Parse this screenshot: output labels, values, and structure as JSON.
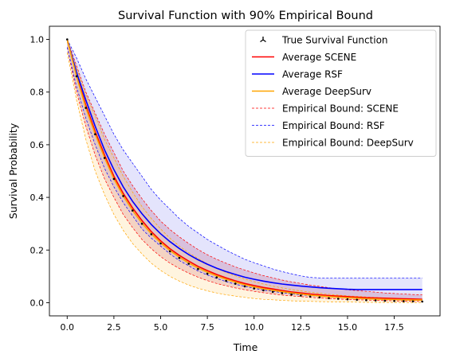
{
  "chart_data": {
    "type": "line",
    "title": "Survival Function with 90% Empirical Bound",
    "xlabel": "Time",
    "ylabel": "Survival Probability",
    "xlim": [
      -0.95,
      19.95
    ],
    "ylim": [
      -0.05,
      1.05
    ],
    "x_ticks": [
      0.0,
      2.5,
      5.0,
      7.5,
      10.0,
      12.5,
      15.0,
      17.5
    ],
    "x_tick_labels": [
      "0.0",
      "2.5",
      "5.0",
      "7.5",
      "10.0",
      "12.5",
      "15.0",
      "17.5"
    ],
    "y_ticks": [
      0.0,
      0.2,
      0.4,
      0.6,
      0.8,
      1.0
    ],
    "y_tick_labels": [
      "0.0",
      "0.2",
      "0.4",
      "0.6",
      "0.8",
      "1.0"
    ],
    "grid": false,
    "legend_position": "top-right",
    "x": [
      0.0,
      0.5,
      1.0,
      1.5,
      2.0,
      2.5,
      3.0,
      3.5,
      4.0,
      4.5,
      5.0,
      5.5,
      6.0,
      6.5,
      7.0,
      7.5,
      8.0,
      8.5,
      9.0,
      9.5,
      10.0,
      10.5,
      11.0,
      11.5,
      12.0,
      12.5,
      13.0,
      13.5,
      14.0,
      14.5,
      15.0,
      15.5,
      16.0,
      16.5,
      17.0,
      17.5,
      18.0,
      18.5,
      19.0
    ],
    "series": [
      {
        "name": "True Survival Function",
        "style": "markers",
        "color": "#000000",
        "values": [
          1.0,
          0.86,
          0.74,
          0.64,
          0.55,
          0.47,
          0.405,
          0.35,
          0.3,
          0.26,
          0.225,
          0.195,
          0.17,
          0.148,
          0.128,
          0.11,
          0.096,
          0.083,
          0.072,
          0.062,
          0.054,
          0.047,
          0.041,
          0.036,
          0.031,
          0.027,
          0.023,
          0.02,
          0.017,
          0.015,
          0.013,
          0.011,
          0.0095,
          0.0085,
          0.0075,
          0.0065,
          0.0055,
          0.005,
          0.0045
        ]
      },
      {
        "name": "Average SCENE",
        "style": "line",
        "color": "#ff0000",
        "values": [
          1.0,
          0.865,
          0.75,
          0.65,
          0.56,
          0.48,
          0.415,
          0.36,
          0.312,
          0.27,
          0.235,
          0.205,
          0.18,
          0.158,
          0.138,
          0.122,
          0.107,
          0.094,
          0.083,
          0.073,
          0.065,
          0.058,
          0.052,
          0.046,
          0.041,
          0.037,
          0.033,
          0.03,
          0.027,
          0.025,
          0.023,
          0.021,
          0.019,
          0.018,
          0.017,
          0.016,
          0.015,
          0.014,
          0.013
        ]
      },
      {
        "name": "Average RSF",
        "style": "line",
        "color": "#0000ff",
        "values": [
          1.0,
          0.875,
          0.77,
          0.67,
          0.58,
          0.505,
          0.44,
          0.385,
          0.338,
          0.297,
          0.262,
          0.232,
          0.206,
          0.183,
          0.163,
          0.146,
          0.131,
          0.118,
          0.107,
          0.097,
          0.089,
          0.082,
          0.076,
          0.071,
          0.067,
          0.063,
          0.06,
          0.057,
          0.055,
          0.053,
          0.051,
          0.05,
          0.05,
          0.05,
          0.05,
          0.05,
          0.05,
          0.05,
          0.05
        ]
      },
      {
        "name": "Average DeepSurv",
        "style": "line",
        "color": "#ffa500",
        "values": [
          1.0,
          0.86,
          0.74,
          0.64,
          0.55,
          0.47,
          0.405,
          0.35,
          0.302,
          0.262,
          0.228,
          0.198,
          0.173,
          0.151,
          0.132,
          0.116,
          0.102,
          0.089,
          0.078,
          0.068,
          0.06,
          0.053,
          0.047,
          0.042,
          0.037,
          0.033,
          0.029,
          0.026,
          0.023,
          0.021,
          0.019,
          0.017,
          0.015,
          0.014,
          0.013,
          0.012,
          0.011,
          0.01,
          0.01
        ]
      }
    ],
    "bounds": [
      {
        "name": "Empirical Bound: SCENE",
        "color": "#ff0000",
        "fill": "#c6506a",
        "fill_opacity": 0.25,
        "upper": [
          1.0,
          0.9,
          0.8,
          0.72,
          0.64,
          0.57,
          0.5,
          0.445,
          0.395,
          0.35,
          0.31,
          0.278,
          0.25,
          0.225,
          0.202,
          0.182,
          0.165,
          0.15,
          0.136,
          0.124,
          0.113,
          0.103,
          0.094,
          0.086,
          0.079,
          0.073,
          0.067,
          0.062,
          0.057,
          0.053,
          0.049,
          0.046,
          0.043,
          0.04,
          0.037,
          0.035,
          0.033,
          0.031,
          0.03
        ],
        "lower": [
          0.97,
          0.8,
          0.67,
          0.56,
          0.47,
          0.4,
          0.335,
          0.285,
          0.24,
          0.205,
          0.175,
          0.15,
          0.13,
          0.112,
          0.097,
          0.084,
          0.073,
          0.064,
          0.056,
          0.049,
          0.043,
          0.038,
          0.033,
          0.029,
          0.026,
          0.023,
          0.02,
          0.018,
          0.016,
          0.014,
          0.012,
          0.011,
          0.01,
          0.009,
          0.008,
          0.007,
          0.006,
          0.005,
          0.005
        ]
      },
      {
        "name": "Empirical Bound: RSF",
        "color": "#0000ff",
        "fill": "#6a6af0",
        "fill_opacity": 0.18,
        "upper": [
          1.0,
          0.93,
          0.85,
          0.78,
          0.71,
          0.64,
          0.58,
          0.53,
          0.48,
          0.43,
          0.39,
          0.355,
          0.32,
          0.29,
          0.265,
          0.24,
          0.22,
          0.2,
          0.182,
          0.165,
          0.152,
          0.14,
          0.128,
          0.118,
          0.11,
          0.102,
          0.096,
          0.094,
          0.094,
          0.094,
          0.094,
          0.094,
          0.094,
          0.094,
          0.094,
          0.094,
          0.094,
          0.094,
          0.094
        ],
        "lower": [
          0.97,
          0.82,
          0.7,
          0.6,
          0.51,
          0.44,
          0.38,
          0.33,
          0.28,
          0.245,
          0.215,
          0.185,
          0.16,
          0.14,
          0.12,
          0.105,
          0.092,
          0.08,
          0.07,
          0.062,
          0.055,
          0.048,
          0.043,
          0.038,
          0.034,
          0.03,
          0.027,
          0.025,
          0.023,
          0.021,
          0.02,
          0.019,
          0.018,
          0.017,
          0.016,
          0.015,
          0.014,
          0.013,
          0.012
        ]
      },
      {
        "name": "Empirical Bound: DeepSurv",
        "color": "#ffa500",
        "fill": "#ffd27f",
        "fill_opacity": 0.25,
        "upper": [
          0.99,
          0.89,
          0.79,
          0.71,
          0.62,
          0.55,
          0.48,
          0.42,
          0.365,
          0.32,
          0.28,
          0.245,
          0.215,
          0.19,
          0.168,
          0.148,
          0.13,
          0.115,
          0.102,
          0.09,
          0.08,
          0.071,
          0.063,
          0.056,
          0.05,
          0.045,
          0.04,
          0.036,
          0.032,
          0.029,
          0.026,
          0.024,
          0.022,
          0.02,
          0.018,
          0.016,
          0.015,
          0.014,
          0.013
        ],
        "lower": [
          0.95,
          0.77,
          0.62,
          0.5,
          0.41,
          0.335,
          0.275,
          0.225,
          0.185,
          0.15,
          0.123,
          0.1,
          0.082,
          0.067,
          0.055,
          0.045,
          0.037,
          0.03,
          0.025,
          0.02,
          0.016,
          0.013,
          0.011,
          0.009,
          0.007,
          0.006,
          0.005,
          0.004,
          0.0035,
          0.003,
          0.0025,
          0.002,
          0.0015,
          0.001,
          0.001,
          0.001,
          0.0005,
          0.0005,
          0.0005
        ]
      }
    ],
    "legend": [
      {
        "label": "True Survival Function",
        "kind": "marker",
        "color": "#000000"
      },
      {
        "label": "Average SCENE",
        "kind": "line",
        "color": "#ff0000"
      },
      {
        "label": "Average RSF",
        "kind": "line",
        "color": "#0000ff"
      },
      {
        "label": "Average DeepSurv",
        "kind": "line",
        "color": "#ffa500"
      },
      {
        "label": "Empirical Bound: SCENE",
        "kind": "dashed",
        "color": "#ff0000"
      },
      {
        "label": "Empirical Bound: RSF",
        "kind": "dashed",
        "color": "#0000ff"
      },
      {
        "label": "Empirical Bound: DeepSurv",
        "kind": "dashed",
        "color": "#ffa500"
      }
    ]
  }
}
